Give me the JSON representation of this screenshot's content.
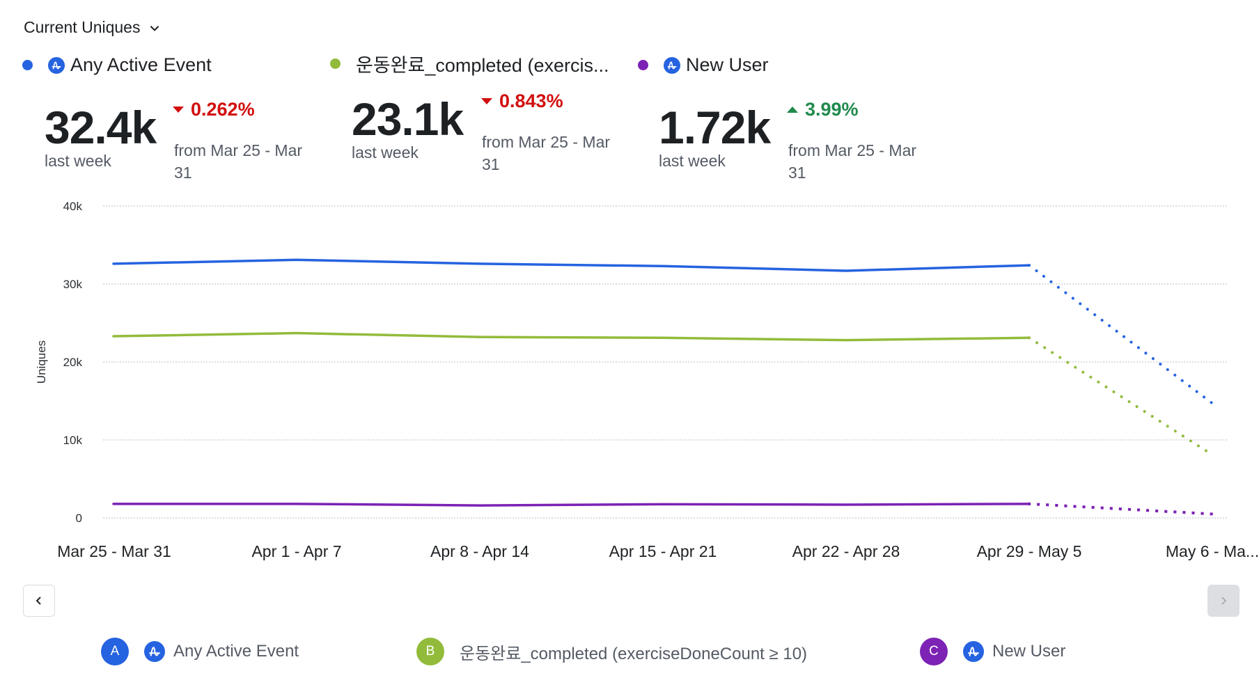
{
  "metric_selector": {
    "label": "Current Uniques",
    "icon": "chevron-down-icon"
  },
  "series_legend": [
    {
      "label": "Any Active Event",
      "color": "#2563e0",
      "icon": "amplitude-icon",
      "letter": "A",
      "full_label": "Any Active Event"
    },
    {
      "label": "운동완료_completed (exercis...",
      "color": "#92bb3b",
      "icon": null,
      "letter": "B",
      "full_label": "운동완료_completed (exerciseDoneCount ≥ 10)"
    },
    {
      "label": "New User",
      "color": "#7c22b4",
      "icon": "amplitude-icon",
      "letter": "C",
      "full_label": "New User"
    }
  ],
  "kpis": [
    {
      "value": "32.4k",
      "period": "last week",
      "direction": "down",
      "change": "0.262%",
      "comparison": "from Mar 25 - Mar 31"
    },
    {
      "value": "23.1k",
      "period": "last week",
      "direction": "down",
      "change": "0.843%",
      "comparison": "from Mar 25 - Mar 31"
    },
    {
      "value": "1.72k",
      "period": "last week",
      "direction": "up",
      "change": "3.99%",
      "comparison": "from Mar 25 - Mar 31"
    }
  ],
  "navigation": {
    "prev_icon": "chevron-left-icon",
    "next_icon": "chevron-right-icon",
    "next_disabled": true
  },
  "colors": {
    "up": "#1f8a4c",
    "down": "#d20f0f",
    "grid": "#c8cacd"
  },
  "chart_data": {
    "type": "line",
    "title": "",
    "xlabel": "",
    "ylabel": "Uniques",
    "ylim": [
      0,
      40000
    ],
    "yticks": [
      0,
      10000,
      20000,
      30000,
      40000
    ],
    "ytick_labels": [
      "0",
      "10k",
      "20k",
      "30k",
      "40k"
    ],
    "grid": true,
    "categories": [
      "Mar 25 - Mar 31",
      "Apr 1 - Apr 7",
      "Apr 8 - Apr 14",
      "Apr 15 - Apr 21",
      "Apr 22 - Apr 28",
      "Apr 29 - May 5",
      "May 6 - Ma..."
    ],
    "incomplete_from_index": 5,
    "series": [
      {
        "name": "Any Active Event",
        "color": "#2563e0",
        "values": [
          32600,
          33100,
          32600,
          32300,
          31700,
          32400,
          14700
        ]
      },
      {
        "name": "운동완료_completed (exerciseDoneCount ≥ 10)",
        "color": "#92bb3b",
        "values": [
          23300,
          23700,
          23200,
          23100,
          22800,
          23100,
          8100
        ]
      },
      {
        "name": "New User",
        "color": "#7c22b4",
        "values": [
          1800,
          1800,
          1600,
          1750,
          1700,
          1800,
          500
        ]
      }
    ]
  }
}
